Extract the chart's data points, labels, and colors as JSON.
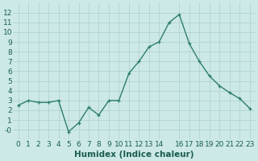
{
  "x": [
    0,
    1,
    2,
    3,
    4,
    5,
    6,
    7,
    8,
    9,
    10,
    11,
    12,
    13,
    14,
    15,
    16,
    17,
    18,
    19,
    20,
    21,
    22,
    23
  ],
  "y": [
    2.5,
    3.0,
    2.8,
    2.8,
    3.0,
    -0.2,
    0.7,
    2.3,
    1.5,
    3.0,
    3.0,
    5.8,
    7.0,
    8.5,
    9.0,
    11.0,
    11.8,
    8.8,
    7.0,
    5.5,
    4.5,
    3.8,
    3.2,
    2.2
  ],
  "line_color": "#2e7d6e",
  "marker": "+",
  "bg_color": "#cce9e7",
  "grid_color": "#aacfcd",
  "xlabel": "Humidex (Indice chaleur)",
  "xlabel_color": "#1a5c52",
  "xlim": [
    -0.5,
    23.5
  ],
  "ylim": [
    -1,
    13
  ],
  "yticks": [
    0,
    1,
    2,
    3,
    4,
    5,
    6,
    7,
    8,
    9,
    10,
    11,
    12
  ],
  "ytick_labels": [
    "-0",
    "1",
    "2",
    "3",
    "4",
    "5",
    "6",
    "7",
    "8",
    "9",
    "10",
    "11",
    "12"
  ],
  "xticks": [
    0,
    1,
    2,
    3,
    4,
    5,
    6,
    7,
    8,
    9,
    10,
    11,
    12,
    13,
    14,
    16,
    17,
    18,
    19,
    20,
    21,
    22,
    23
  ],
  "xtick_labels": [
    "0",
    "1",
    "2",
    "3",
    "4",
    "5",
    "6",
    "7",
    "8",
    "9",
    "10",
    "11",
    "12",
    "13",
    "14",
    "16",
    "17",
    "18",
    "19",
    "20",
    "21",
    "22",
    "23"
  ],
  "tick_label_color": "#1a5c52",
  "font_size_axis": 6.5,
  "font_size_xlabel": 7.5,
  "line_width": 1.0,
  "marker_size": 3.5
}
